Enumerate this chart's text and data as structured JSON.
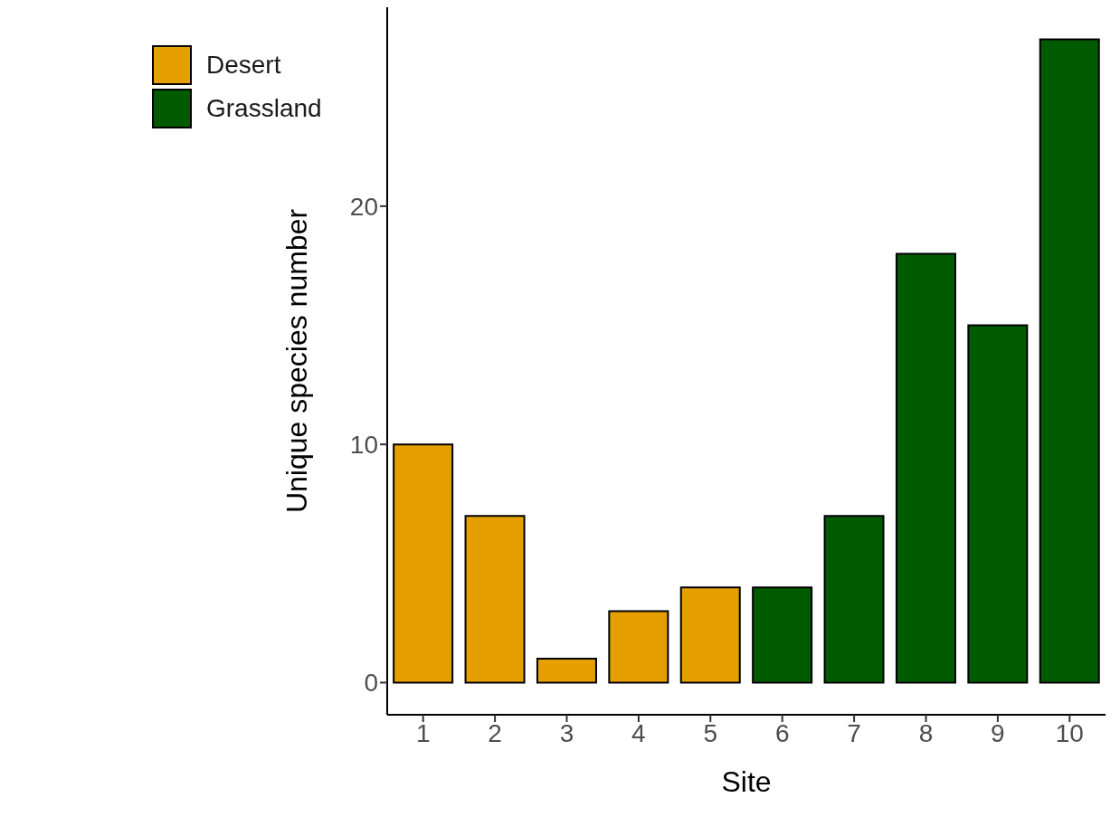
{
  "chart_data": {
    "type": "bar",
    "xlabel": "Site",
    "ylabel": "Unique species number",
    "categories": [
      "1",
      "2",
      "3",
      "4",
      "5",
      "6",
      "7",
      "8",
      "9",
      "10"
    ],
    "series": [
      {
        "name": "Desert",
        "color": "#e69f00",
        "values": [
          10,
          7,
          1,
          3,
          4,
          null,
          null,
          null,
          null,
          null
        ]
      },
      {
        "name": "Grassland",
        "color": "#005a00",
        "values": [
          null,
          null,
          null,
          null,
          null,
          4,
          7,
          18,
          15,
          27
        ]
      }
    ],
    "stacked": true,
    "ylim": [
      -1.35,
      28.35
    ],
    "yticks": [
      0,
      10,
      20
    ],
    "grid": false,
    "legend": "top left"
  }
}
